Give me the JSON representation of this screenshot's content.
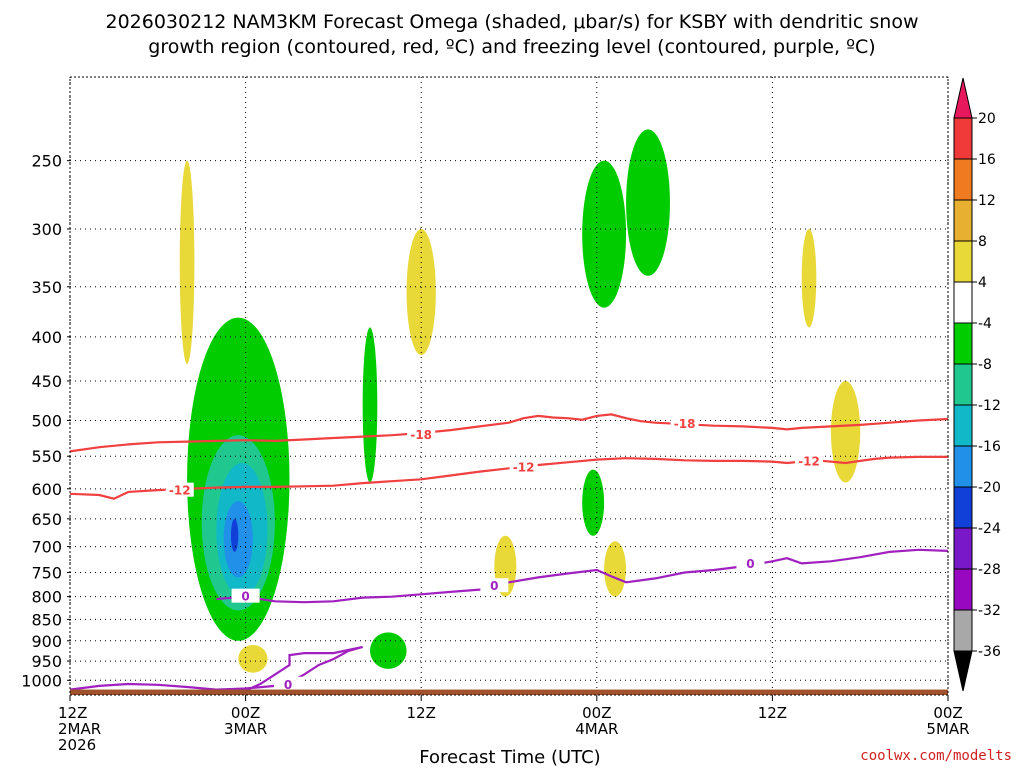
{
  "title_line1": "2026030212 NAM3KM Forecast Omega (shaded, μbar/s) for KSBY with dendritic snow",
  "title_line2": "growth region (contoured, red, ºC) and freezing level (contoured, purple, ºC)",
  "credit": "coolwx.com/modelts",
  "chart_data": {
    "type": "heatmap",
    "xlabel": "Forecast Time (UTC)",
    "ylabel": "",
    "x_ticks": [
      {
        "hours": 0,
        "lines": [
          "12Z",
          "2MAR",
          "2026"
        ]
      },
      {
        "hours": 12,
        "lines": [
          "00Z",
          "3MAR"
        ]
      },
      {
        "hours": 24,
        "lines": [
          "12Z"
        ]
      },
      {
        "hours": 36,
        "lines": [
          "00Z",
          "4MAR"
        ]
      },
      {
        "hours": 48,
        "lines": [
          "12Z"
        ]
      },
      {
        "hours": 60,
        "lines": [
          "00Z",
          "5MAR"
        ]
      }
    ],
    "xlim_hours": [
      0,
      60
    ],
    "y_ticks_hPa": [
      250,
      300,
      350,
      400,
      450,
      500,
      550,
      600,
      650,
      700,
      750,
      800,
      850,
      900,
      950,
      1000
    ],
    "ylim_hPa": [
      200,
      1040
    ],
    "y_scale": "log-pressure (inverted)",
    "grid": true,
    "colorbar": {
      "units": "μbar/s",
      "labels": [
        "20",
        "16",
        "12",
        "8",
        "4",
        "-4",
        "-8",
        "-12",
        "-16",
        "-20",
        "-24",
        "-28",
        "-32",
        "-36"
      ],
      "colors": [
        "#e8185c",
        "#f03a3a",
        "#f07a20",
        "#e8b030",
        "#e8d838",
        "#ffffff",
        "#00cc00",
        "#20c890",
        "#10b8c8",
        "#2090e8",
        "#1040d8",
        "#7818c8",
        "#9808c0",
        "#a8a8a8",
        "#000000"
      ]
    },
    "contours": [
      {
        "level": "-18",
        "color": "#f04040",
        "points": [
          [
            0,
            543
          ],
          [
            2,
            537
          ],
          [
            4,
            533
          ],
          [
            6,
            530
          ],
          [
            8,
            529
          ],
          [
            10,
            528
          ],
          [
            12,
            527
          ],
          [
            14,
            528
          ],
          [
            16,
            526
          ],
          [
            18,
            524
          ],
          [
            20,
            522
          ],
          [
            22,
            520
          ],
          [
            24,
            517
          ],
          [
            26,
            513
          ],
          [
            28,
            508
          ],
          [
            30,
            503
          ],
          [
            31,
            497
          ],
          [
            32,
            494
          ],
          [
            33,
            496
          ],
          [
            34,
            497
          ],
          [
            35,
            499
          ],
          [
            36,
            494
          ],
          [
            37,
            492
          ],
          [
            38,
            497
          ],
          [
            39,
            501
          ],
          [
            40,
            503
          ],
          [
            42,
            505
          ],
          [
            44,
            507
          ],
          [
            46,
            508
          ],
          [
            48,
            510
          ],
          [
            49,
            512
          ],
          [
            50,
            510
          ],
          [
            52,
            508
          ],
          [
            54,
            506
          ],
          [
            56,
            503
          ],
          [
            58,
            500
          ],
          [
            60,
            498
          ]
        ],
        "labels": [
          {
            "h": 24,
            "p": 520
          },
          {
            "h": 42,
            "p": 505
          }
        ]
      },
      {
        "level": "-12",
        "color": "#f04040",
        "points": [
          [
            0,
            608
          ],
          [
            2,
            610
          ],
          [
            3,
            616
          ],
          [
            4,
            605
          ],
          [
            6,
            602
          ],
          [
            8,
            600
          ],
          [
            10,
            598
          ],
          [
            12,
            597
          ],
          [
            14,
            597
          ],
          [
            16,
            596
          ],
          [
            18,
            595
          ],
          [
            20,
            591
          ],
          [
            22,
            588
          ],
          [
            24,
            585
          ],
          [
            26,
            579
          ],
          [
            28,
            573
          ],
          [
            30,
            568
          ],
          [
            32,
            563
          ],
          [
            34,
            559
          ],
          [
            36,
            555
          ],
          [
            38,
            553
          ],
          [
            40,
            554
          ],
          [
            42,
            556
          ],
          [
            44,
            557
          ],
          [
            46,
            557
          ],
          [
            48,
            558
          ],
          [
            49,
            560
          ],
          [
            50,
            558
          ],
          [
            51,
            556
          ],
          [
            52,
            558
          ],
          [
            53,
            560
          ],
          [
            54,
            557
          ],
          [
            55,
            554
          ],
          [
            56,
            552
          ],
          [
            58,
            551
          ],
          [
            60,
            551
          ]
        ],
        "labels": [
          {
            "h": 7.5,
            "p": 603
          },
          {
            "h": 31,
            "p": 567
          },
          {
            "h": 50.5,
            "p": 558
          }
        ]
      },
      {
        "level": "0",
        "color": "#a020c0",
        "points": [
          [
            10,
            805
          ],
          [
            12,
            800
          ],
          [
            14,
            810
          ],
          [
            16,
            812
          ],
          [
            18,
            810
          ],
          [
            20,
            802
          ],
          [
            22,
            800
          ],
          [
            24,
            795
          ],
          [
            26,
            790
          ],
          [
            28,
            785
          ],
          [
            29,
            778
          ],
          [
            30,
            770
          ],
          [
            32,
            760
          ],
          [
            34,
            752
          ],
          [
            36,
            745
          ],
          [
            37,
            758
          ],
          [
            38,
            770
          ],
          [
            40,
            762
          ],
          [
            42,
            750
          ],
          [
            44,
            745
          ],
          [
            46,
            738
          ],
          [
            48,
            728
          ],
          [
            49,
            722
          ],
          [
            50,
            732
          ],
          [
            52,
            728
          ],
          [
            54,
            720
          ],
          [
            56,
            710
          ],
          [
            58,
            706
          ],
          [
            60,
            708
          ]
        ],
        "labels": [
          {
            "h": 12,
            "p": 800
          },
          {
            "h": 29,
            "p": 778
          },
          {
            "h": 46.5,
            "p": 733
          }
        ]
      },
      {
        "level": "0",
        "color": "#a020c0",
        "points": [
          [
            0,
            1025
          ],
          [
            2,
            1015
          ],
          [
            4,
            1010
          ],
          [
            6,
            1012
          ],
          [
            8,
            1018
          ],
          [
            10,
            1025
          ],
          [
            12,
            1022
          ],
          [
            14,
            1015
          ],
          [
            15,
            1005
          ],
          [
            16,
            985
          ],
          [
            17,
            960
          ],
          [
            18,
            945
          ],
          [
            19,
            925
          ],
          [
            20,
            915
          ],
          [
            18,
            930
          ],
          [
            16,
            930
          ],
          [
            15,
            935
          ],
          [
            15,
            960
          ],
          [
            14,
            985
          ],
          [
            13,
            1010
          ],
          [
            12,
            1028
          ]
        ],
        "labels": [
          {
            "h": 14.9,
            "p": 1012
          }
        ]
      }
    ],
    "omega_regions": [
      {
        "level": "-4 to -8",
        "color": "#00cc00",
        "hours": [
          8,
          15
        ],
        "hPa": [
          380,
          900
        ]
      },
      {
        "level": "-8 to -12",
        "color": "#20c890",
        "hours": [
          9,
          14
        ],
        "hPa": [
          520,
          830
        ]
      },
      {
        "level": "-12 to -16",
        "color": "#10b8c8",
        "hours": [
          10,
          13.5
        ],
        "hPa": [
          560,
          800
        ]
      },
      {
        "level": "-16 to -20",
        "color": "#2090e8",
        "hours": [
          10.5,
          12.5
        ],
        "hPa": [
          620,
          760
        ]
      },
      {
        "level": "-20 to -24",
        "color": "#1040d8",
        "hours": [
          11,
          11.5
        ],
        "hPa": [
          650,
          710
        ]
      },
      {
        "level": "-4 to -8",
        "color": "#00cc00",
        "hours": [
          35,
          38
        ],
        "hPa": [
          250,
          370
        ]
      },
      {
        "level": "-4 to -8",
        "color": "#00cc00",
        "hours": [
          38,
          41
        ],
        "hPa": [
          230,
          340
        ]
      },
      {
        "level": "-4 to -8",
        "color": "#00cc00",
        "hours": [
          20,
          21
        ],
        "hPa": [
          390,
          590
        ]
      },
      {
        "level": "-4 to -8",
        "color": "#00cc00",
        "hours": [
          35,
          36.5
        ],
        "hPa": [
          570,
          680
        ]
      },
      {
        "level": "-4 to -8",
        "color": "#00cc00",
        "hours": [
          20.5,
          23
        ],
        "hPa": [
          880,
          970
        ]
      },
      {
        "level": "4 to 8",
        "color": "#e8d838",
        "hours": [
          7.5,
          8.5
        ],
        "hPa": [
          250,
          430
        ]
      },
      {
        "level": "4 to 8",
        "color": "#e8d838",
        "hours": [
          23,
          25
        ],
        "hPa": [
          300,
          420
        ]
      },
      {
        "level": "4 to 8",
        "color": "#e8d838",
        "hours": [
          52,
          54
        ],
        "hPa": [
          450,
          590
        ]
      },
      {
        "level": "4 to 8",
        "color": "#e8d838",
        "hours": [
          36.5,
          38
        ],
        "hPa": [
          690,
          800
        ]
      },
      {
        "level": "4 to 8",
        "color": "#e8d838",
        "hours": [
          29,
          30.5
        ],
        "hPa": [
          680,
          800
        ]
      },
      {
        "level": "4 to 8",
        "color": "#e8d838",
        "hours": [
          50,
          51
        ],
        "hPa": [
          300,
          390
        ]
      },
      {
        "level": "4 to 8",
        "color": "#e8d838",
        "hours": [
          11.5,
          13.5
        ],
        "hPa": [
          910,
          980
        ]
      }
    ],
    "terrain": {
      "color": "#a0522d",
      "from_hPa": 1025,
      "to_hPa": 1040
    }
  }
}
